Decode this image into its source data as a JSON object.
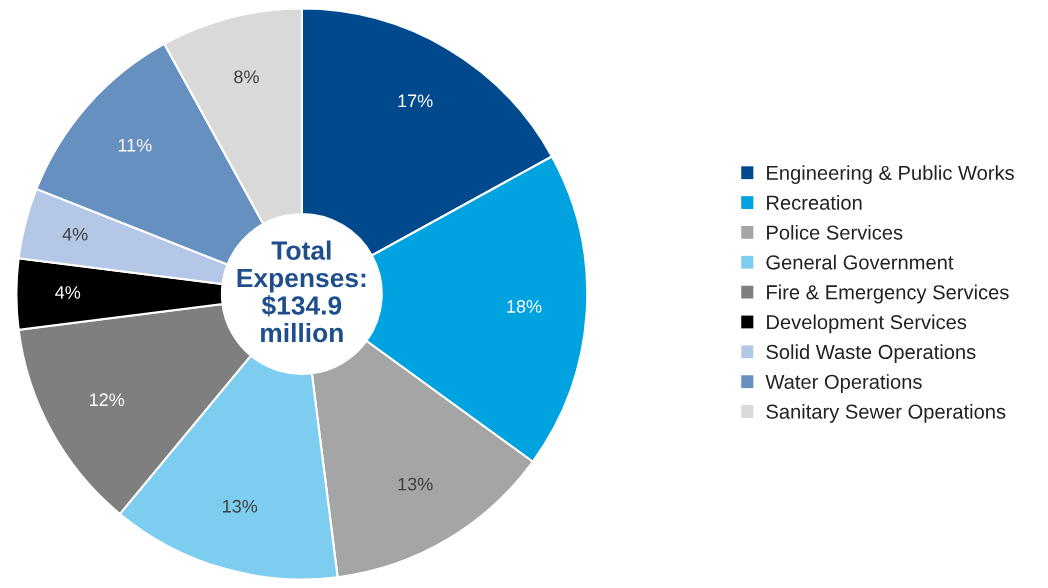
{
  "chart_data": {
    "type": "donut",
    "categories": [
      "Engineering & Public Works",
      "Recreation",
      "Police Services",
      "General Government",
      "Fire & Emergency Services",
      "Development Services",
      "Solid Waste Operations",
      "Water Operations",
      "Sanitary Sewer Operations"
    ],
    "values": [
      17,
      18,
      13,
      13,
      12,
      4,
      4,
      11,
      8
    ],
    "colors": [
      "#00498d",
      "#00a3e0",
      "#a5a5a5",
      "#7dcdf0",
      "#7f7f7f",
      "#000000",
      "#b4c7e7",
      "#6590c0",
      "#d9d9d9"
    ],
    "value_labels": [
      "17%",
      "18%",
      "13%",
      "13%",
      "12%",
      "4%",
      "4%",
      "11%",
      "8%"
    ],
    "annotations": [
      "Total Expenses: $134.9 million"
    ],
    "legend": "right"
  }
}
